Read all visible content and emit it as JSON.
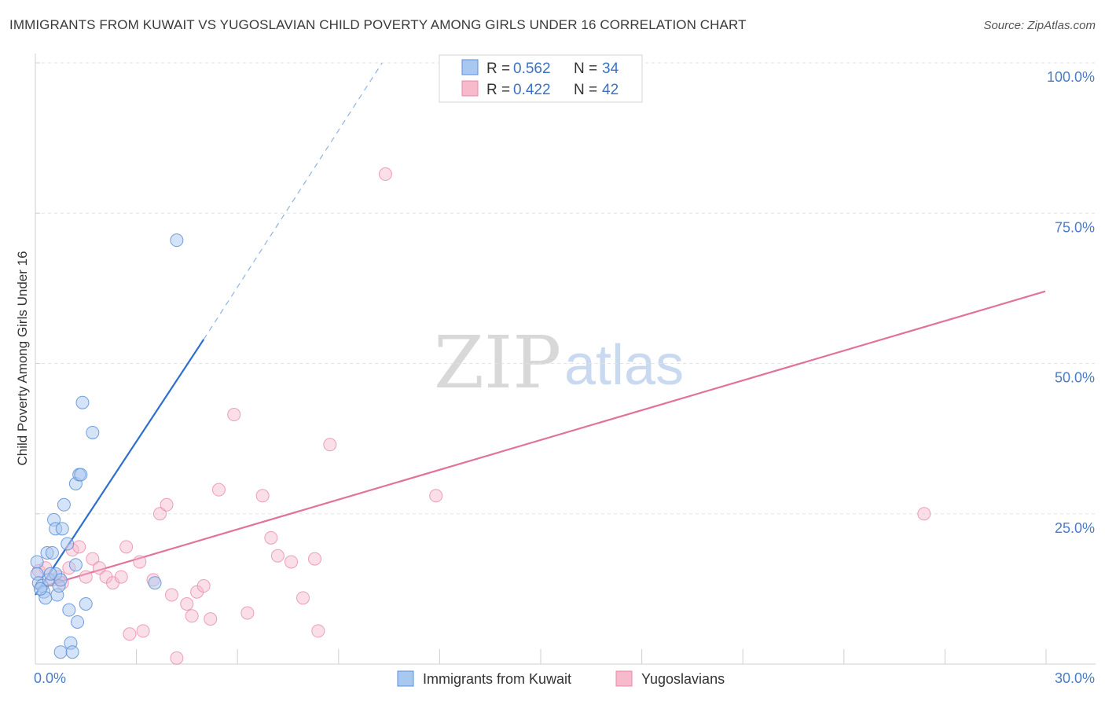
{
  "title": "IMMIGRANTS FROM KUWAIT VS YUGOSLAVIAN CHILD POVERTY AMONG GIRLS UNDER 16 CORRELATION CHART",
  "source": "Source: ZipAtlas.com",
  "watermark": {
    "zip": "ZIP",
    "atlas": "atlas"
  },
  "colors": {
    "blue_fill": "#a9c8f0",
    "blue_stroke": "#5b8fd6",
    "blue_line": "#2e6fce",
    "pink_fill": "#f7b9cc",
    "pink_stroke": "#e889a8",
    "pink_line": "#e0729b",
    "grid": "#e3e3e3"
  },
  "legend": {
    "r_label": "R =",
    "n_label": "N =",
    "rows": [
      {
        "series": "Immigrants from Kuwait",
        "r": "0.562",
        "n": "34"
      },
      {
        "series": "Yugoslavians",
        "r": "0.422",
        "n": "42"
      }
    ]
  },
  "chart_data": {
    "type": "scatter",
    "title": "IMMIGRANTS FROM KUWAIT VS YUGOSLAVIAN CHILD POVERTY AMONG GIRLS UNDER 16 CORRELATION CHART",
    "xlabel": "",
    "ylabel": "Child Poverty Among Girls Under 16",
    "xlim": [
      0,
      30
    ],
    "ylim": [
      0,
      100
    ],
    "x_tick_labels": [
      "0.0%",
      "30.0%"
    ],
    "y_ticks": [
      25,
      50,
      75,
      100
    ],
    "y_tick_labels": [
      "25.0%",
      "50.0%",
      "75.0%",
      "100.0%"
    ],
    "legend_position": "bottom",
    "series": [
      {
        "name": "Immigrants from Kuwait",
        "points": [
          [
            0.05,
            17
          ],
          [
            0.05,
            15
          ],
          [
            0.1,
            13.5
          ],
          [
            0.2,
            13
          ],
          [
            0.25,
            12
          ],
          [
            0.3,
            11
          ],
          [
            0.35,
            18.5
          ],
          [
            0.4,
            14
          ],
          [
            0.5,
            18.5
          ],
          [
            0.55,
            24
          ],
          [
            0.6,
            22.5
          ],
          [
            0.6,
            15
          ],
          [
            0.65,
            11.5
          ],
          [
            0.7,
            13
          ],
          [
            0.75,
            14
          ],
          [
            0.75,
            2
          ],
          [
            0.8,
            22.5
          ],
          [
            0.85,
            26.5
          ],
          [
            0.95,
            20
          ],
          [
            1.0,
            9
          ],
          [
            1.05,
            3.5
          ],
          [
            1.1,
            2
          ],
          [
            1.2,
            30
          ],
          [
            1.2,
            16.5
          ],
          [
            1.25,
            7
          ],
          [
            1.3,
            31.5
          ],
          [
            1.35,
            31.5
          ],
          [
            1.4,
            43.5
          ],
          [
            1.5,
            10
          ],
          [
            1.7,
            38.5
          ],
          [
            3.55,
            13.5
          ],
          [
            4.2,
            70.5
          ],
          [
            0.15,
            12.5
          ],
          [
            0.45,
            15
          ]
        ],
        "trend_solid": [
          [
            0,
            11.5
          ],
          [
            5.0,
            54
          ]
        ],
        "trend_dashed": [
          [
            5.0,
            54
          ],
          [
            10.3,
            100
          ]
        ]
      },
      {
        "name": "Yugoslavians",
        "points": [
          [
            0.1,
            15.5
          ],
          [
            0.3,
            16
          ],
          [
            0.5,
            14
          ],
          [
            0.7,
            14.5
          ],
          [
            0.8,
            13.5
          ],
          [
            1.0,
            16
          ],
          [
            1.1,
            19
          ],
          [
            1.3,
            19.5
          ],
          [
            1.5,
            14.5
          ],
          [
            1.7,
            17.5
          ],
          [
            1.9,
            16
          ],
          [
            2.1,
            14.5
          ],
          [
            2.3,
            13.5
          ],
          [
            2.55,
            14.5
          ],
          [
            2.7,
            19.5
          ],
          [
            2.8,
            5
          ],
          [
            3.1,
            17
          ],
          [
            3.2,
            5.5
          ],
          [
            3.5,
            14
          ],
          [
            3.7,
            25
          ],
          [
            3.9,
            26.5
          ],
          [
            4.05,
            11.5
          ],
          [
            4.2,
            1
          ],
          [
            4.5,
            10
          ],
          [
            4.65,
            8
          ],
          [
            4.8,
            12
          ],
          [
            5.0,
            13
          ],
          [
            5.2,
            7.5
          ],
          [
            5.45,
            29
          ],
          [
            5.9,
            41.5
          ],
          [
            6.3,
            8.5
          ],
          [
            6.75,
            28
          ],
          [
            7.0,
            21
          ],
          [
            7.2,
            18
          ],
          [
            7.6,
            17
          ],
          [
            7.95,
            11
          ],
          [
            8.3,
            17.5
          ],
          [
            8.4,
            5.5
          ],
          [
            8.75,
            36.5
          ],
          [
            10.4,
            81.5
          ],
          [
            11.9,
            28
          ],
          [
            26.4,
            25
          ]
        ],
        "trend": [
          [
            0,
            12.5
          ],
          [
            30,
            62
          ]
        ]
      }
    ]
  }
}
